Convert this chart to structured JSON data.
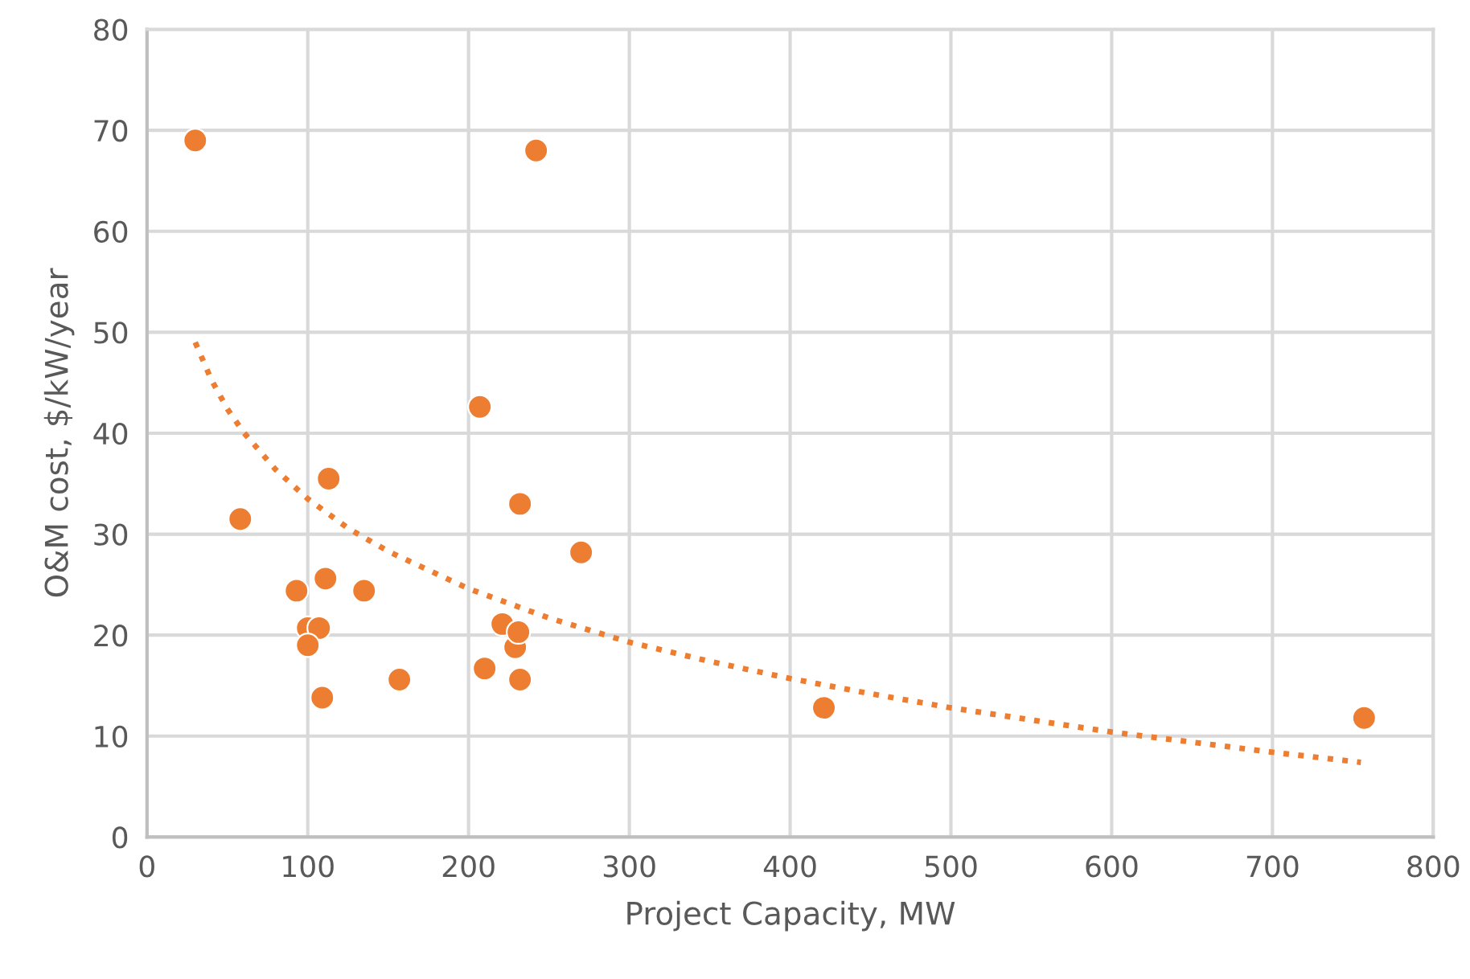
{
  "chart_data": {
    "type": "scatter",
    "xlabel": "Project Capacity, MW",
    "ylabel": "O&M cost, $/kW/year",
    "xlim": [
      0,
      800
    ],
    "ylim": [
      0,
      80
    ],
    "xticks": [
      0,
      100,
      200,
      300,
      400,
      500,
      600,
      700,
      800
    ],
    "yticks": [
      0,
      10,
      20,
      30,
      40,
      50,
      60,
      70,
      80
    ],
    "grid": true,
    "legend": false,
    "marker": "circle",
    "series": [
      {
        "color": "#ed7d31",
        "x": [
          30,
          58,
          93,
          100,
          107,
          100,
          109,
          111,
          113,
          135,
          157,
          207,
          210,
          221,
          229,
          231,
          232,
          232,
          242,
          270,
          421,
          757
        ],
        "values": [
          69,
          31.5,
          24.4,
          20.7,
          20.7,
          19,
          13.8,
          25.6,
          35.5,
          24.4,
          15.6,
          42.6,
          16.7,
          21.1,
          18.8,
          20.3,
          15.6,
          33,
          68,
          28.2,
          12.8,
          11.8
        ]
      },
      {
        "type": "line",
        "color": "#ed7d31",
        "line_style": "dotted",
        "marker": "none",
        "x": [
          30,
          40,
          50,
          60,
          80,
          100,
          125,
          150,
          200,
          250,
          300,
          350,
          400,
          450,
          500,
          550,
          600,
          650,
          700,
          755
        ],
        "values": [
          49,
          45.3,
          42.4,
          40.1,
          36.4,
          33.5,
          30.6,
          28.3,
          24.6,
          21.7,
          19.3,
          17.4,
          15.7,
          14.2,
          12.8,
          11.6,
          10.4,
          9.4,
          8.4,
          7.4
        ]
      }
    ]
  }
}
